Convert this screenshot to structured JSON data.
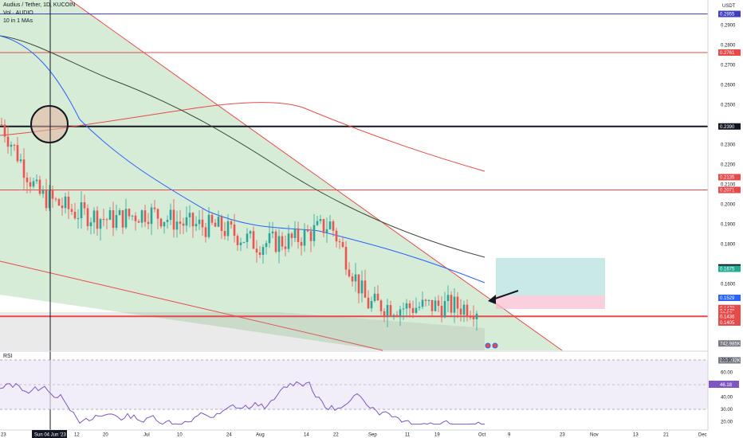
{
  "header": {
    "symbol_line": "Audius / Tether, 1D, KUCOIN",
    "vol_line": "Vol · AUDIO",
    "ma_line": "10 in 1 MAs"
  },
  "price_axis": {
    "currency": "USDT",
    "ticks": [
      "0.2900",
      "0.2800",
      "0.2700",
      "0.2600",
      "0.2500",
      "0.2300",
      "0.2200",
      "0.2100",
      "0.2000",
      "0.1900",
      "0.1800",
      "0.1600",
      "0.1300"
    ],
    "tick_values": [
      0.29,
      0.28,
      0.27,
      0.26,
      0.25,
      0.23,
      0.22,
      0.21,
      0.2,
      0.19,
      0.18,
      0.16,
      0.13
    ],
    "badges": [
      {
        "label": "0.2955",
        "value": 0.2955,
        "color": "#3f3fbf"
      },
      {
        "label": "0.2761",
        "value": 0.2761,
        "color": "#e84a4a"
      },
      {
        "label": "0.2390",
        "value": 0.239,
        "color": "#131722"
      },
      {
        "label": "0.2135",
        "value": 0.2135,
        "color": "#e84a4a"
      },
      {
        "label": "0.2071",
        "value": 0.2071,
        "color": "#e84a4a"
      },
      {
        "label": "0.1682",
        "value": 0.1682,
        "color": "#131722"
      },
      {
        "label": "0.1675",
        "value": 0.1675,
        "color": "#22ab94"
      },
      {
        "label": "0.1529",
        "value": 0.1529,
        "color": "#2962ff"
      },
      {
        "label": "0.1478",
        "value": 0.1478,
        "color": "#e84a4a"
      },
      {
        "label": "0.1478",
        "value": 0.1463,
        "color": "#e84a4a"
      },
      {
        "label": "20:57",
        "value": 0.1449,
        "color": "#e84a4a"
      },
      {
        "label": "0.1436",
        "value": 0.1436,
        "color": "#e84a4a"
      },
      {
        "label": "0.1405",
        "value": 0.1405,
        "color": "#e84a4a"
      },
      {
        "label": "742.985K",
        "value": 0.13,
        "color": "#787b86"
      },
      {
        "label": "210.392K",
        "value": 0.1215,
        "color": "#787b86"
      }
    ]
  },
  "time_axis": {
    "ticks": [
      "23",
      "12",
      "20",
      "Jul",
      "10",
      "24",
      "Aug",
      "14",
      "22",
      "Sep",
      "11",
      "19",
      "Oct",
      "9",
      "23",
      "Nov",
      "13",
      "21",
      "Dec"
    ],
    "highlight": "Sun 04 Jun '23"
  },
  "rsi": {
    "label": "RSI",
    "ticks": [
      "70.00",
      "60.00",
      "50.00",
      "40.00",
      "30.00",
      "20.00"
    ],
    "tick_values": [
      70,
      60,
      50,
      40,
      30,
      20
    ],
    "current": "46.18",
    "current_value": 46.18
  },
  "chart_data": {
    "type": "line",
    "title": "Audius / Tether, 1D, KUCOIN",
    "x": [
      0,
      10,
      20,
      30,
      40,
      50,
      60,
      70,
      80,
      90,
      100,
      110,
      120,
      130
    ],
    "series": [
      {
        "values": [
          0.24,
          0.205,
          0.196,
          0.192,
          0.196,
          0.19,
          0.188,
          0.18,
          0.182,
          0.19,
          0.15,
          0.148,
          0.149,
          0.148
        ]
      }
    ],
    "horizontal_levels": [
      0.2955,
      0.2761,
      0.239,
      0.2071,
      0.1436
    ],
    "ylim": [
      0.125,
      0.3
    ],
    "colors": {
      "up": "#26a69a",
      "down": "#ef5350",
      "channel": "#e84a4a",
      "ma_blue": "#2962ff",
      "ma_red": "#e84a4a",
      "ma_dark": "#3d4a3d"
    }
  }
}
